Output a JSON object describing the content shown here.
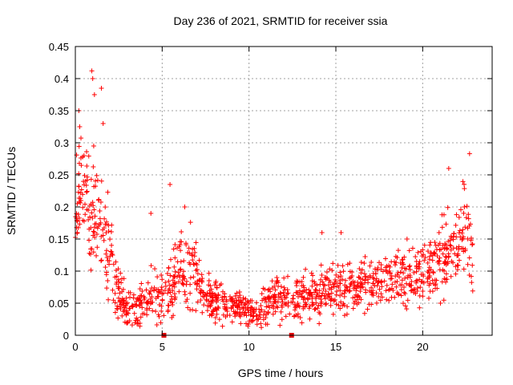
{
  "chart_data": {
    "type": "scatter",
    "title": "Day 236 of 2021, SRMTID for receiver ssia",
    "xlabel": "GPS time / hours",
    "ylabel": "SRMTID / TECUs",
    "xlim": [
      0,
      24
    ],
    "ylim": [
      0,
      0.45
    ],
    "grid": true,
    "marker": "plus",
    "color": "#ff0000",
    "x_ticks": [
      0,
      5,
      10,
      15,
      20
    ],
    "x_tick_labels": [
      "0",
      "5",
      "10",
      "15",
      "20"
    ],
    "y_ticks": [
      0,
      0.05,
      0.1,
      0.15,
      0.2,
      0.25,
      0.3,
      0.35,
      0.4,
      0.45
    ],
    "y_tick_labels": [
      "0",
      "0.05",
      "0.1",
      "0.15",
      "0.2",
      "0.25",
      "0.3",
      "0.35",
      "0.4",
      "0.45"
    ],
    "data_gaps_x": [
      5.1,
      12.45
    ],
    "trend": [
      [
        0.0,
        0.18
      ],
      [
        0.3,
        0.25
      ],
      [
        0.6,
        0.21
      ],
      [
        1.0,
        0.19
      ],
      [
        1.4,
        0.17
      ],
      [
        1.8,
        0.15
      ],
      [
        2.1,
        0.11
      ],
      [
        2.5,
        0.07
      ],
      [
        3.0,
        0.04
      ],
      [
        3.5,
        0.04
      ],
      [
        4.0,
        0.05
      ],
      [
        4.5,
        0.06
      ],
      [
        5.0,
        0.05
      ],
      [
        5.5,
        0.07
      ],
      [
        6.0,
        0.1
      ],
      [
        6.5,
        0.11
      ],
      [
        7.0,
        0.09
      ],
      [
        7.5,
        0.06
      ],
      [
        8.0,
        0.055
      ],
      [
        8.5,
        0.05
      ],
      [
        9.0,
        0.045
      ],
      [
        9.5,
        0.04
      ],
      [
        10.0,
        0.035
      ],
      [
        10.5,
        0.035
      ],
      [
        11.0,
        0.04
      ],
      [
        11.5,
        0.05
      ],
      [
        12.0,
        0.06
      ],
      [
        12.5,
        0.055
      ],
      [
        13.0,
        0.06
      ],
      [
        13.5,
        0.065
      ],
      [
        14.0,
        0.065
      ],
      [
        14.5,
        0.07
      ],
      [
        15.0,
        0.075
      ],
      [
        15.5,
        0.075
      ],
      [
        16.0,
        0.08
      ],
      [
        16.5,
        0.08
      ],
      [
        17.0,
        0.08
      ],
      [
        17.5,
        0.085
      ],
      [
        18.0,
        0.09
      ],
      [
        18.5,
        0.09
      ],
      [
        19.0,
        0.09
      ],
      [
        19.5,
        0.095
      ],
      [
        20.0,
        0.1
      ],
      [
        20.5,
        0.11
      ],
      [
        21.0,
        0.12
      ],
      [
        21.5,
        0.13
      ],
      [
        22.0,
        0.15
      ],
      [
        22.5,
        0.16
      ],
      [
        22.9,
        0.15
      ]
    ],
    "spread": [
      [
        0.0,
        0.08
      ],
      [
        1.0,
        0.1
      ],
      [
        2.0,
        0.08
      ],
      [
        2.5,
        0.04
      ],
      [
        3.5,
        0.03
      ],
      [
        5.5,
        0.06
      ],
      [
        6.5,
        0.07
      ],
      [
        7.5,
        0.04
      ],
      [
        10.0,
        0.025
      ],
      [
        12.0,
        0.04
      ],
      [
        15.0,
        0.04
      ],
      [
        18.0,
        0.04
      ],
      [
        20.0,
        0.05
      ],
      [
        21.5,
        0.07
      ],
      [
        22.9,
        0.08
      ]
    ],
    "notable_points": [
      [
        0.2,
        0.35
      ],
      [
        0.25,
        0.325
      ],
      [
        0.95,
        0.412
      ],
      [
        1.0,
        0.4
      ],
      [
        1.1,
        0.375
      ],
      [
        1.5,
        0.385
      ],
      [
        1.6,
        0.33
      ],
      [
        0.5,
        0.28
      ],
      [
        5.45,
        0.235
      ],
      [
        6.3,
        0.2
      ],
      [
        4.35,
        0.19
      ],
      [
        22.7,
        0.283
      ],
      [
        21.5,
        0.26
      ],
      [
        22.4,
        0.2
      ],
      [
        14.2,
        0.16
      ],
      [
        15.3,
        0.16
      ],
      [
        8.4,
        0.08
      ],
      [
        11.6,
        0.09
      ],
      [
        19.1,
        0.15
      ]
    ]
  }
}
